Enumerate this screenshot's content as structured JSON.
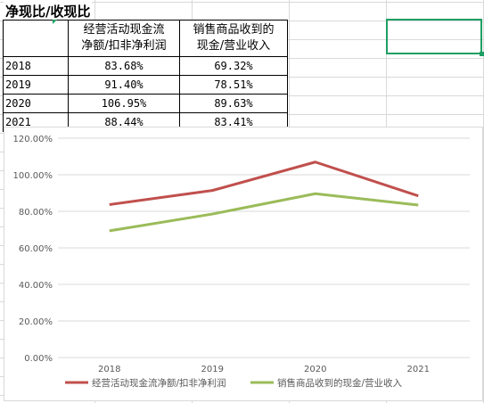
{
  "sheet": {
    "title": "净现比/收现比",
    "headers": [
      "",
      "经营活动现金流净额/扣非净利润",
      "销售商品收到的现金/营业收入"
    ],
    "header_lines": [
      [
        "",
        ""
      ],
      [
        "经营活动现金流",
        "净额/扣非净利润"
      ],
      [
        "销售商品收到的",
        "现金/营业收入"
      ]
    ],
    "rows": [
      [
        "2018",
        "83.68%",
        "69.32%"
      ],
      [
        "2019",
        "91.40%",
        "78.51%"
      ],
      [
        "2020",
        "106.95%",
        "89.63%"
      ],
      [
        "2021",
        "88.44%",
        "83.41%"
      ]
    ],
    "selection_color": "#1e9f63"
  },
  "chart_data": {
    "type": "line",
    "categories": [
      "2018",
      "2019",
      "2020",
      "2021"
    ],
    "series": [
      {
        "name": "经营活动现金流净额/扣非净利润",
        "values": [
          83.68,
          91.4,
          106.95,
          88.44
        ],
        "color": "#c0504d"
      },
      {
        "name": "销售商品收到的现金/营业收入",
        "values": [
          69.32,
          78.51,
          89.63,
          83.41
        ],
        "color": "#9bbb59"
      }
    ],
    "ylim": [
      0,
      120
    ],
    "yticks": [
      "0.00%",
      "20.00%",
      "40.00%",
      "60.00%",
      "80.00%",
      "100.00%",
      "120.00%"
    ],
    "ytick_values": [
      0,
      20,
      40,
      60,
      80,
      100,
      120
    ],
    "grid": true,
    "legend": "bottom"
  }
}
